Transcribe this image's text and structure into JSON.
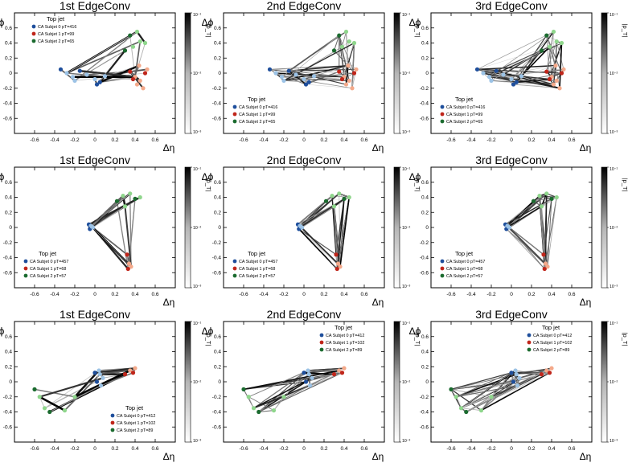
{
  "figure": {
    "xlabel": "Δη",
    "ylabel": "Δϕ",
    "colorbar_label": "|p_T|",
    "colorbar_ticks": [
      "10⁻¹",
      "10⁻²",
      "10⁻³"
    ],
    "colorbar_range": [
      0.001,
      0.1
    ],
    "legend_title": "Top jet",
    "colors": {
      "subjet0_dark": "#1f4f9c",
      "subjet0_light": "#9cc3e6",
      "subjet1_dark": "#c0261b",
      "subjet1_light": "#f4a98a",
      "subjet2_dark": "#1b6b2f",
      "subjet2_light": "#8fd68c",
      "edge": "#000000",
      "frame": "#000000"
    }
  },
  "chart_data": [
    {
      "type": "scatter",
      "title": "1st EdgeConv",
      "xlabel": "Δη",
      "ylabel": "Δϕ",
      "xlim": [
        -0.8,
        0.8
      ],
      "ylim": [
        -0.8,
        0.8
      ],
      "xticks": [
        -0.6,
        -0.4,
        -0.2,
        0,
        0.2,
        0.4,
        0.6
      ],
      "yticks": [
        -0.6,
        -0.4,
        -0.2,
        0,
        0.2,
        0.4,
        0.6
      ],
      "legend": {
        "title": "Top jet",
        "position": "top-left",
        "entries": [
          "CA Subjet 0 pT=416",
          "CA Subjet 1 pT=99",
          "CA Subjet 2 pT=65"
        ]
      },
      "series": [
        {
          "name": "CA Subjet 0 pT=416",
          "x": [
            -0.34,
            -0.28,
            -0.22,
            -0.15,
            -0.08,
            0.0,
            0.05,
            0.1,
            -0.2,
            0.02
          ],
          "y": [
            0.05,
            0.0,
            -0.05,
            0.03,
            -0.02,
            -0.08,
            -0.12,
            -0.04,
            -0.1,
            -0.15
          ]
        },
        {
          "name": "CA Subjet 1 pT=99",
          "x": [
            0.35,
            0.4,
            0.45,
            0.5,
            0.42,
            0.48,
            0.38,
            0.52,
            0.44
          ],
          "y": [
            0.02,
            -0.05,
            -0.1,
            0.0,
            -0.15,
            -0.2,
            -0.08,
            0.05,
            0.1
          ]
        },
        {
          "name": "CA Subjet 2 pT=65",
          "x": [
            0.3,
            0.38,
            0.45,
            0.35,
            0.42,
            0.5
          ],
          "y": [
            0.3,
            0.35,
            0.42,
            0.5,
            0.55,
            0.4
          ]
        }
      ]
    },
    {
      "type": "scatter",
      "title": "2nd EdgeConv",
      "xlabel": "Δη",
      "ylabel": "Δϕ",
      "xlim": [
        -0.8,
        0.8
      ],
      "ylim": [
        -0.8,
        0.8
      ],
      "xticks": [
        -0.6,
        -0.4,
        -0.2,
        0,
        0.2,
        0.4,
        0.6
      ],
      "yticks": [
        -0.6,
        -0.4,
        -0.2,
        0,
        0.2,
        0.4,
        0.6
      ],
      "legend": {
        "title": "Top jet",
        "position": "bottom-left",
        "entries": [
          "CA Subjet 0 pT=416",
          "CA Subjet 1 pT=99",
          "CA Subjet 2 pT=65"
        ]
      },
      "series": [
        {
          "name": "CA Subjet 0 pT=416",
          "x": [
            -0.34,
            -0.28,
            -0.22,
            -0.15,
            -0.08,
            0.0,
            0.05,
            0.1,
            -0.2,
            0.02
          ],
          "y": [
            0.05,
            0.0,
            -0.05,
            0.03,
            -0.02,
            -0.08,
            -0.12,
            -0.04,
            -0.1,
            -0.15
          ]
        },
        {
          "name": "CA Subjet 1 pT=99",
          "x": [
            0.35,
            0.4,
            0.45,
            0.5,
            0.42,
            0.48,
            0.38,
            0.52,
            0.44
          ],
          "y": [
            0.02,
            -0.05,
            -0.1,
            0.0,
            -0.15,
            -0.2,
            -0.08,
            0.05,
            0.1
          ]
        },
        {
          "name": "CA Subjet 2 pT=65",
          "x": [
            0.3,
            0.38,
            0.45,
            0.35,
            0.42,
            0.5
          ],
          "y": [
            0.3,
            0.35,
            0.42,
            0.5,
            0.55,
            0.4
          ]
        }
      ]
    },
    {
      "type": "scatter",
      "title": "3rd EdgeConv",
      "xlabel": "Δη",
      "ylabel": "Δϕ",
      "xlim": [
        -0.8,
        0.8
      ],
      "ylim": [
        -0.8,
        0.8
      ],
      "xticks": [
        -0.6,
        -0.4,
        -0.2,
        0,
        0.2,
        0.4,
        0.6
      ],
      "yticks": [
        -0.6,
        -0.4,
        -0.2,
        0,
        0.2,
        0.4,
        0.6
      ],
      "legend": {
        "title": "Top jet",
        "position": "bottom-left",
        "entries": [
          "CA Subjet 0 pT=416",
          "CA Subjet 1 pT=99",
          "CA Subjet 2 pT=65"
        ]
      },
      "series": [
        {
          "name": "CA Subjet 0 pT=416",
          "x": [
            -0.34,
            -0.28,
            -0.22,
            -0.15,
            -0.08,
            0.0,
            0.05,
            0.1,
            -0.2,
            0.02
          ],
          "y": [
            0.05,
            0.0,
            -0.05,
            0.03,
            -0.02,
            -0.08,
            -0.12,
            -0.04,
            -0.1,
            -0.15
          ]
        },
        {
          "name": "CA Subjet 1 pT=99",
          "x": [
            0.35,
            0.4,
            0.45,
            0.5,
            0.42,
            0.48,
            0.38,
            0.52,
            0.44
          ],
          "y": [
            0.02,
            -0.05,
            -0.1,
            0.0,
            -0.15,
            -0.2,
            -0.08,
            0.05,
            0.1
          ]
        },
        {
          "name": "CA Subjet 2 pT=65",
          "x": [
            0.3,
            0.38,
            0.45,
            0.35,
            0.42,
            0.5
          ],
          "y": [
            0.3,
            0.35,
            0.42,
            0.5,
            0.55,
            0.4
          ]
        }
      ]
    },
    {
      "type": "scatter",
      "title": "1st EdgeConv",
      "xlabel": "Δη",
      "ylabel": "Δϕ",
      "xlim": [
        -0.8,
        0.8
      ],
      "ylim": [
        -0.8,
        0.8
      ],
      "xticks": [
        -0.6,
        -0.4,
        -0.2,
        0,
        0.2,
        0.4,
        0.6
      ],
      "yticks": [
        -0.6,
        -0.4,
        -0.2,
        0,
        0.2,
        0.4,
        0.6
      ],
      "legend": {
        "title": "Top jet",
        "position": "bottom-left",
        "entries": [
          "CA Subjet 0 pT=457",
          "CA Subjet 1 pT=68",
          "CA Subjet 2 pT=57"
        ]
      },
      "series": [
        {
          "name": "CA Subjet 0 pT=457",
          "x": [
            -0.06,
            -0.04,
            -0.02,
            -0.05,
            -0.03
          ],
          "y": [
            0.04,
            0.02,
            0.0,
            -0.02,
            0.01
          ]
        },
        {
          "name": "CA Subjet 1 pT=68",
          "x": [
            0.32,
            0.34,
            0.36,
            0.33
          ],
          "y": [
            -0.36,
            -0.48,
            -0.52,
            -0.55
          ]
        },
        {
          "name": "CA Subjet 2 pT=57",
          "x": [
            0.22,
            0.28,
            0.35,
            0.4,
            0.45,
            0.3
          ],
          "y": [
            0.35,
            0.42,
            0.45,
            0.38,
            0.4,
            0.28
          ]
        }
      ]
    },
    {
      "type": "scatter",
      "title": "2nd EdgeConv",
      "xlabel": "Δη",
      "ylabel": "Δϕ",
      "xlim": [
        -0.8,
        0.8
      ],
      "ylim": [
        -0.8,
        0.8
      ],
      "xticks": [
        -0.6,
        -0.4,
        -0.2,
        0,
        0.2,
        0.4,
        0.6
      ],
      "yticks": [
        -0.6,
        -0.4,
        -0.2,
        0,
        0.2,
        0.4,
        0.6
      ],
      "legend": {
        "title": "Top jet",
        "position": "bottom-left",
        "entries": [
          "CA Subjet 0 pT=457",
          "CA Subjet 1 pT=68",
          "CA Subjet 2 pT=57"
        ]
      },
      "series": [
        {
          "name": "CA Subjet 0 pT=457",
          "x": [
            -0.06,
            -0.04,
            -0.02,
            -0.05,
            -0.03
          ],
          "y": [
            0.04,
            0.02,
            0.0,
            -0.02,
            0.01
          ]
        },
        {
          "name": "CA Subjet 1 pT=68",
          "x": [
            0.32,
            0.34,
            0.36,
            0.33
          ],
          "y": [
            -0.36,
            -0.48,
            -0.52,
            -0.55
          ]
        },
        {
          "name": "CA Subjet 2 pT=57",
          "x": [
            0.22,
            0.28,
            0.35,
            0.4,
            0.45,
            0.3
          ],
          "y": [
            0.35,
            0.42,
            0.45,
            0.38,
            0.4,
            0.28
          ]
        }
      ]
    },
    {
      "type": "scatter",
      "title": "3rd EdgeConv",
      "xlabel": "Δη",
      "ylabel": "Δϕ",
      "xlim": [
        -0.8,
        0.8
      ],
      "ylim": [
        -0.8,
        0.8
      ],
      "xticks": [
        -0.6,
        -0.4,
        -0.2,
        0,
        0.2,
        0.4,
        0.6
      ],
      "yticks": [
        -0.6,
        -0.4,
        -0.2,
        0,
        0.2,
        0.4,
        0.6
      ],
      "legend": {
        "title": "Top jet",
        "position": "bottom-left",
        "entries": [
          "CA Subjet 0 pT=457",
          "CA Subjet 1 pT=68",
          "CA Subjet 2 pT=57"
        ]
      },
      "series": [
        {
          "name": "CA Subjet 0 pT=457",
          "x": [
            -0.06,
            -0.04,
            -0.02,
            -0.05,
            -0.03
          ],
          "y": [
            0.04,
            0.02,
            0.0,
            -0.02,
            0.01
          ]
        },
        {
          "name": "CA Subjet 1 pT=68",
          "x": [
            0.32,
            0.34,
            0.36,
            0.33
          ],
          "y": [
            -0.36,
            -0.48,
            -0.52,
            -0.55
          ]
        },
        {
          "name": "CA Subjet 2 pT=57",
          "x": [
            0.22,
            0.28,
            0.35,
            0.4,
            0.45,
            0.3
          ],
          "y": [
            0.35,
            0.42,
            0.45,
            0.38,
            0.4,
            0.28
          ]
        }
      ]
    },
    {
      "type": "scatter",
      "title": "1st EdgeConv",
      "xlabel": "Δη",
      "ylabel": "Δϕ",
      "xlim": [
        -0.8,
        0.8
      ],
      "ylim": [
        -0.8,
        0.8
      ],
      "xticks": [
        -0.6,
        -0.4,
        -0.2,
        0,
        0.2,
        0.4,
        0.6
      ],
      "yticks": [
        -0.6,
        -0.4,
        -0.2,
        0,
        0.2,
        0.4,
        0.6
      ],
      "legend": {
        "title": "Top jet",
        "position": "bottom-right",
        "entries": [
          "CA Subjet 0 pT=412",
          "CA Subjet 1 pT=102",
          "CA Subjet 2 pT=89"
        ]
      },
      "series": [
        {
          "name": "CA Subjet 0 pT=412",
          "x": [
            0.0,
            0.05,
            0.08,
            0.02,
            0.06,
            0.04
          ],
          "y": [
            0.12,
            0.1,
            0.05,
            0.0,
            -0.05,
            0.15
          ]
        },
        {
          "name": "CA Subjet 1 pT=102",
          "x": [
            0.3,
            0.35,
            0.4,
            0.38
          ],
          "y": [
            0.1,
            0.15,
            0.18,
            0.12
          ]
        },
        {
          "name": "CA Subjet 2 pT=89",
          "x": [
            -0.6,
            -0.55,
            -0.5,
            -0.45,
            -0.3,
            -0.2
          ],
          "y": [
            -0.1,
            -0.2,
            -0.35,
            -0.4,
            -0.38,
            -0.2
          ]
        }
      ]
    },
    {
      "type": "scatter",
      "title": "2nd EdgeConv",
      "xlabel": "Δη",
      "ylabel": "Δϕ",
      "xlim": [
        -0.8,
        0.8
      ],
      "ylim": [
        -0.8,
        0.8
      ],
      "xticks": [
        -0.6,
        -0.4,
        -0.2,
        0,
        0.2,
        0.4,
        0.6
      ],
      "yticks": [
        -0.6,
        -0.4,
        -0.2,
        0,
        0.2,
        0.4,
        0.6
      ],
      "legend": {
        "title": "Top jet",
        "position": "top-right",
        "entries": [
          "CA Subjet 0 pT=412",
          "CA Subjet 1 pT=102",
          "CA Subjet 2 pT=89"
        ]
      },
      "series": [
        {
          "name": "CA Subjet 0 pT=412",
          "x": [
            0.0,
            0.05,
            0.08,
            0.02,
            0.06,
            0.04
          ],
          "y": [
            0.12,
            0.1,
            0.05,
            0.0,
            -0.05,
            0.15
          ]
        },
        {
          "name": "CA Subjet 1 pT=102",
          "x": [
            0.3,
            0.35,
            0.4,
            0.38
          ],
          "y": [
            0.1,
            0.15,
            0.18,
            0.12
          ]
        },
        {
          "name": "CA Subjet 2 pT=89",
          "x": [
            -0.6,
            -0.55,
            -0.5,
            -0.45,
            -0.3,
            -0.2
          ],
          "y": [
            -0.1,
            -0.2,
            -0.35,
            -0.4,
            -0.38,
            -0.2
          ]
        }
      ]
    },
    {
      "type": "scatter",
      "title": "3rd EdgeConv",
      "xlabel": "Δη",
      "ylabel": "Δϕ",
      "xlim": [
        -0.8,
        0.8
      ],
      "ylim": [
        -0.8,
        0.8
      ],
      "xticks": [
        -0.6,
        -0.4,
        -0.2,
        0,
        0.2,
        0.4,
        0.6
      ],
      "yticks": [
        -0.6,
        -0.4,
        -0.2,
        0,
        0.2,
        0.4,
        0.6
      ],
      "legend": {
        "title": "Top jet",
        "position": "top-right",
        "entries": [
          "CA Subjet 0 pT=412",
          "CA Subjet 1 pT=102",
          "CA Subjet 2 pT=89"
        ]
      },
      "series": [
        {
          "name": "CA Subjet 0 pT=412",
          "x": [
            0.0,
            0.05,
            0.08,
            0.02,
            0.06,
            0.04
          ],
          "y": [
            0.12,
            0.1,
            0.05,
            0.0,
            -0.05,
            0.15
          ]
        },
        {
          "name": "CA Subjet 1 pT=102",
          "x": [
            0.3,
            0.35,
            0.4,
            0.38
          ],
          "y": [
            0.1,
            0.15,
            0.18,
            0.12
          ]
        },
        {
          "name": "CA Subjet 2 pT=89",
          "x": [
            -0.6,
            -0.55,
            -0.5,
            -0.45,
            -0.3,
            -0.2
          ],
          "y": [
            -0.1,
            -0.2,
            -0.35,
            -0.4,
            -0.38,
            -0.2
          ]
        }
      ]
    }
  ]
}
